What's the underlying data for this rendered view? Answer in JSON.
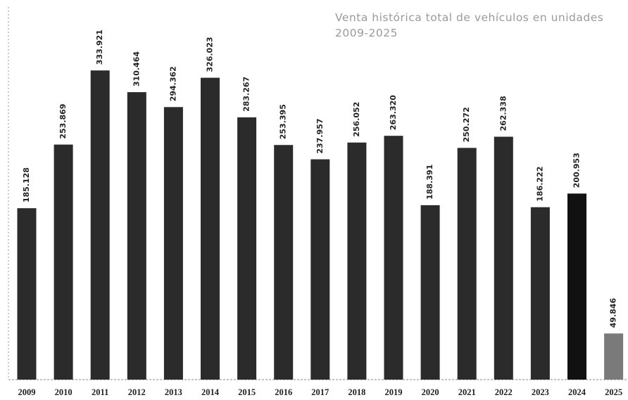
{
  "chart_data": {
    "type": "bar",
    "title": "Venta histórica total de vehículos en unidades 2009-2025",
    "categories": [
      "2009",
      "2010",
      "2011",
      "2012",
      "2013",
      "2014",
      "2015",
      "2016",
      "2017",
      "2018",
      "2019",
      "2020",
      "2021",
      "2022",
      "2023",
      "2024",
      "2025"
    ],
    "values": [
      185128,
      253869,
      333921,
      310464,
      294362,
      326023,
      283267,
      253395,
      237957,
      256052,
      263320,
      188391,
      250272,
      262338,
      186222,
      200953,
      49846
    ],
    "value_labels": [
      "185.128",
      "253.869",
      "333.921",
      "310.464",
      "294.362",
      "326.023",
      "283.267",
      "253.395",
      "237.957",
      "256.052",
      "263.320",
      "188.391",
      "250.272",
      "262.338",
      "186.222",
      "200.953",
      "49.846"
    ],
    "colors": [
      "#2b2b2b",
      "#2b2b2b",
      "#2b2b2b",
      "#2b2b2b",
      "#2b2b2b",
      "#2b2b2b",
      "#2b2b2b",
      "#2b2b2b",
      "#2b2b2b",
      "#2b2b2b",
      "#2b2b2b",
      "#2b2b2b",
      "#2b2b2b",
      "#2b2b2b",
      "#2b2b2b",
      "#111111",
      "#7a7a7a"
    ],
    "ylim": [
      0,
      410000
    ]
  }
}
